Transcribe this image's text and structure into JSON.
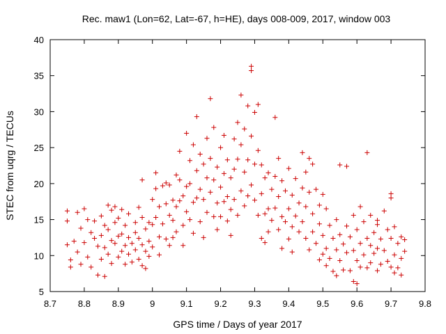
{
  "chart_data": {
    "type": "scatter",
    "title": "Rec. maw1 (Lon=62, Lat=-67, h=HE), days 008-009, 2017, window 003",
    "xlabel": "GPS time / Days of year 2017",
    "ylabel": "STEC from uqrg / TECUs",
    "xlim": [
      8.7,
      9.8
    ],
    "ylim": [
      5,
      40
    ],
    "xticks": [
      "8.7",
      "8.8",
      "8.9",
      "9",
      "9.1",
      "9.2",
      "9.3",
      "9.4",
      "9.5",
      "9.6",
      "9.7",
      "9.8"
    ],
    "yticks": [
      "5",
      "10",
      "15",
      "20",
      "25",
      "30",
      "35",
      "40"
    ],
    "grid": false,
    "legend": "none",
    "marker": "plus",
    "color": "#cc0000",
    "series": [
      {
        "points": [
          [
            8.75,
            16.2
          ],
          [
            8.75,
            14.8
          ],
          [
            8.75,
            11.5
          ],
          [
            8.76,
            9.4
          ],
          [
            8.76,
            8.4
          ],
          [
            8.77,
            12.0
          ],
          [
            8.78,
            16.0
          ],
          [
            8.78,
            10.5
          ],
          [
            8.79,
            13.8
          ],
          [
            8.79,
            8.8
          ],
          [
            8.8,
            16.5
          ],
          [
            8.8,
            11.8
          ],
          [
            8.81,
            9.8
          ],
          [
            8.81,
            15.0
          ],
          [
            8.82,
            13.2
          ],
          [
            8.82,
            8.4
          ],
          [
            8.83,
            12.4
          ],
          [
            8.83,
            14.8
          ],
          [
            8.84,
            11.3
          ],
          [
            8.84,
            7.3
          ],
          [
            8.85,
            15.5
          ],
          [
            8.85,
            12.8
          ],
          [
            8.85,
            9.5
          ],
          [
            8.86,
            14.2
          ],
          [
            8.86,
            11.1
          ],
          [
            8.86,
            7.1
          ],
          [
            8.87,
            13.6
          ],
          [
            8.87,
            17.0
          ],
          [
            8.87,
            10.2
          ],
          [
            8.88,
            16.3
          ],
          [
            8.88,
            12.1
          ],
          [
            8.88,
            8.9
          ],
          [
            8.89,
            16.8
          ],
          [
            8.89,
            14.6
          ],
          [
            8.89,
            11.7
          ],
          [
            8.9,
            15.2
          ],
          [
            8.9,
            12.7
          ],
          [
            8.9,
            9.8
          ],
          [
            8.91,
            13.0
          ],
          [
            8.91,
            10.6
          ],
          [
            8.91,
            16.4
          ],
          [
            8.92,
            11.4
          ],
          [
            8.92,
            8.8
          ],
          [
            8.92,
            14.2
          ],
          [
            8.93,
            12.5
          ],
          [
            8.93,
            10.2
          ],
          [
            8.93,
            15.8
          ],
          [
            8.94,
            11.7
          ],
          [
            8.94,
            9.1
          ],
          [
            8.95,
            14.6
          ],
          [
            8.95,
            13.2
          ],
          [
            8.95,
            10.8
          ],
          [
            8.96,
            16.7
          ],
          [
            8.96,
            12.4
          ],
          [
            8.96,
            9.5
          ],
          [
            8.97,
            15.3
          ],
          [
            8.97,
            11.5
          ],
          [
            8.97,
            20.5
          ],
          [
            8.98,
            10.6
          ],
          [
            8.98,
            13.7
          ],
          [
            8.98,
            8.2
          ],
          [
            8.99,
            14.6
          ],
          [
            8.99,
            9.9
          ],
          [
            8.99,
            12.0
          ],
          [
            8.97,
            8.6
          ],
          [
            9.0,
            11.2
          ],
          [
            9.0,
            14.3
          ],
          [
            9.0,
            17.8
          ],
          [
            9.01,
            21.5
          ],
          [
            9.01,
            19.3
          ],
          [
            9.01,
            15.3
          ],
          [
            9.02,
            12.6
          ],
          [
            9.02,
            16.8
          ],
          [
            9.02,
            10.1
          ],
          [
            9.03,
            19.7
          ],
          [
            9.03,
            14.4
          ],
          [
            9.04,
            17.2
          ],
          [
            9.04,
            12.3
          ],
          [
            9.04,
            20.1
          ],
          [
            9.05,
            15.6
          ],
          [
            9.05,
            11.4
          ],
          [
            9.05,
            19.8
          ],
          [
            9.06,
            14.9
          ],
          [
            9.06,
            17.7
          ],
          [
            9.06,
            12.5
          ],
          [
            9.07,
            21.2
          ],
          [
            9.07,
            16.8
          ],
          [
            9.07,
            13.3
          ],
          [
            9.08,
            20.5
          ],
          [
            9.08,
            17.6
          ],
          [
            9.08,
            24.5
          ],
          [
            9.09,
            18.3
          ],
          [
            9.09,
            14.2
          ],
          [
            9.09,
            11.4
          ],
          [
            9.1,
            27.0
          ],
          [
            9.1,
            19.6
          ],
          [
            9.1,
            16.1
          ],
          [
            9.11,
            23.2
          ],
          [
            9.11,
            20.0
          ],
          [
            9.11,
            15.0
          ],
          [
            9.12,
            25.4
          ],
          [
            9.12,
            17.4
          ],
          [
            9.12,
            13.1
          ],
          [
            9.13,
            29.3
          ],
          [
            9.13,
            21.8
          ],
          [
            9.13,
            18.0
          ],
          [
            9.14,
            24.1
          ],
          [
            9.14,
            19.2
          ],
          [
            9.14,
            14.7
          ],
          [
            9.15,
            22.7
          ],
          [
            9.15,
            17.8
          ],
          [
            9.15,
            12.5
          ],
          [
            9.16,
            26.3
          ],
          [
            9.16,
            20.8
          ],
          [
            9.16,
            16.0
          ],
          [
            9.17,
            31.8
          ],
          [
            9.17,
            23.5
          ],
          [
            9.17,
            18.8
          ],
          [
            9.18,
            20.5
          ],
          [
            9.18,
            15.4
          ],
          [
            9.18,
            27.8
          ],
          [
            9.19,
            22.3
          ],
          [
            9.19,
            17.3
          ],
          [
            9.19,
            13.6
          ],
          [
            9.2,
            25.0
          ],
          [
            9.2,
            19.5
          ],
          [
            9.2,
            15.4
          ],
          [
            9.21,
            26.7
          ],
          [
            9.21,
            21.4
          ],
          [
            9.21,
            17.5
          ],
          [
            9.22,
            23.3
          ],
          [
            9.22,
            18.2
          ],
          [
            9.22,
            14.8
          ],
          [
            9.23,
            20.8
          ],
          [
            9.23,
            16.4
          ],
          [
            9.23,
            12.8
          ],
          [
            9.24,
            26.2
          ],
          [
            9.24,
            22.0
          ],
          [
            9.24,
            17.8
          ],
          [
            9.25,
            28.5
          ],
          [
            9.25,
            23.4
          ],
          [
            9.25,
            15.6
          ],
          [
            9.26,
            32.3
          ],
          [
            9.26,
            25.4
          ],
          [
            9.26,
            19.0
          ],
          [
            9.27,
            27.6
          ],
          [
            9.27,
            21.6
          ],
          [
            9.27,
            16.9
          ],
          [
            9.28,
            30.8
          ],
          [
            9.28,
            23.3
          ],
          [
            9.28,
            18.3
          ],
          [
            9.29,
            36.3
          ],
          [
            9.29,
            35.7
          ],
          [
            9.29,
            26.6
          ],
          [
            9.29,
            19.8
          ],
          [
            9.3,
            29.9
          ],
          [
            9.3,
            22.7
          ],
          [
            9.3,
            17.7
          ],
          [
            9.31,
            31.0
          ],
          [
            9.31,
            24.6
          ],
          [
            9.31,
            15.6
          ],
          [
            9.32,
            22.6
          ],
          [
            9.32,
            18.6
          ],
          [
            9.32,
            12.4
          ],
          [
            9.33,
            20.8
          ],
          [
            9.33,
            15.8
          ],
          [
            9.33,
            11.8
          ],
          [
            9.34,
            21.5
          ],
          [
            9.34,
            16.5
          ],
          [
            9.34,
            13.3
          ],
          [
            9.35,
            19.2
          ],
          [
            9.35,
            14.9
          ],
          [
            9.36,
            29.2
          ],
          [
            9.36,
            21.0
          ],
          [
            9.36,
            16.6
          ],
          [
            9.37,
            23.5
          ],
          [
            9.37,
            18.2
          ],
          [
            9.37,
            13.6
          ],
          [
            9.38,
            20.4
          ],
          [
            9.38,
            15.4
          ],
          [
            9.38,
            11.0
          ],
          [
            9.39,
            19.0
          ],
          [
            9.39,
            14.7
          ],
          [
            9.4,
            22.1
          ],
          [
            9.4,
            16.5
          ],
          [
            9.4,
            12.3
          ],
          [
            9.41,
            18.4
          ],
          [
            9.41,
            14.0
          ],
          [
            9.41,
            10.5
          ],
          [
            9.42,
            20.7
          ],
          [
            9.42,
            15.5
          ],
          [
            9.43,
            17.3
          ],
          [
            9.43,
            13.3
          ],
          [
            9.44,
            24.3
          ],
          [
            9.44,
            19.4
          ],
          [
            9.44,
            14.7
          ],
          [
            9.45,
            21.6
          ],
          [
            9.45,
            16.8
          ],
          [
            9.45,
            12.4
          ],
          [
            9.46,
            23.5
          ],
          [
            9.46,
            18.8
          ],
          [
            9.46,
            10.8
          ],
          [
            9.47,
            22.7
          ],
          [
            9.47,
            15.8
          ],
          [
            9.47,
            13.3
          ],
          [
            9.48,
            19.2
          ],
          [
            9.48,
            11.7
          ],
          [
            9.49,
            17.0
          ],
          [
            9.49,
            14.4
          ],
          [
            9.49,
            9.4
          ],
          [
            9.5,
            18.5
          ],
          [
            9.5,
            12.8
          ],
          [
            9.5,
            10.2
          ],
          [
            9.51,
            16.5
          ],
          [
            9.51,
            11.0
          ],
          [
            9.51,
            8.6
          ],
          [
            9.52,
            14.2
          ],
          [
            9.52,
            9.6
          ],
          [
            9.53,
            12.4
          ],
          [
            9.53,
            7.8
          ],
          [
            9.54,
            15.0
          ],
          [
            9.54,
            10.8
          ],
          [
            9.54,
            7.2
          ],
          [
            9.55,
            22.6
          ],
          [
            9.55,
            12.9
          ],
          [
            9.55,
            9.3
          ],
          [
            9.56,
            11.6
          ],
          [
            9.56,
            8.0
          ],
          [
            9.57,
            22.4
          ],
          [
            9.57,
            14.1
          ],
          [
            9.57,
            10.4
          ],
          [
            9.58,
            12.6
          ],
          [
            9.58,
            7.9
          ],
          [
            9.59,
            15.6
          ],
          [
            9.59,
            10.7
          ],
          [
            9.59,
            6.4
          ],
          [
            9.6,
            13.6
          ],
          [
            9.6,
            9.3
          ],
          [
            9.6,
            6.1
          ],
          [
            9.61,
            16.8
          ],
          [
            9.61,
            11.7
          ],
          [
            9.61,
            8.4
          ],
          [
            9.62,
            14.7
          ],
          [
            9.62,
            10.1
          ],
          [
            9.63,
            24.3
          ],
          [
            9.63,
            12.4
          ],
          [
            9.63,
            8.3
          ],
          [
            9.64,
            15.6
          ],
          [
            9.64,
            11.4
          ],
          [
            9.64,
            9.0
          ],
          [
            9.65,
            13.2
          ],
          [
            9.65,
            10.3
          ],
          [
            9.66,
            14.9
          ],
          [
            9.66,
            11.0
          ],
          [
            9.66,
            7.9
          ],
          [
            9.67,
            12.3
          ],
          [
            9.67,
            8.8
          ],
          [
            9.68,
            16.2
          ],
          [
            9.68,
            10.7
          ],
          [
            9.69,
            13.6
          ],
          [
            9.69,
            9.2
          ],
          [
            9.7,
            18.6
          ],
          [
            9.7,
            12.4
          ],
          [
            9.7,
            8.4
          ],
          [
            9.71,
            14.0
          ],
          [
            9.71,
            10.1
          ],
          [
            9.71,
            7.6
          ],
          [
            9.72,
            11.7
          ],
          [
            9.72,
            8.3
          ],
          [
            9.73,
            12.6
          ],
          [
            9.73,
            9.6
          ],
          [
            9.73,
            7.3
          ],
          [
            9.74,
            10.6
          ],
          [
            9.74,
            12.2
          ],
          [
            9.7,
            18.0
          ],
          [
            9.66,
            14.3
          ]
        ]
      }
    ]
  }
}
